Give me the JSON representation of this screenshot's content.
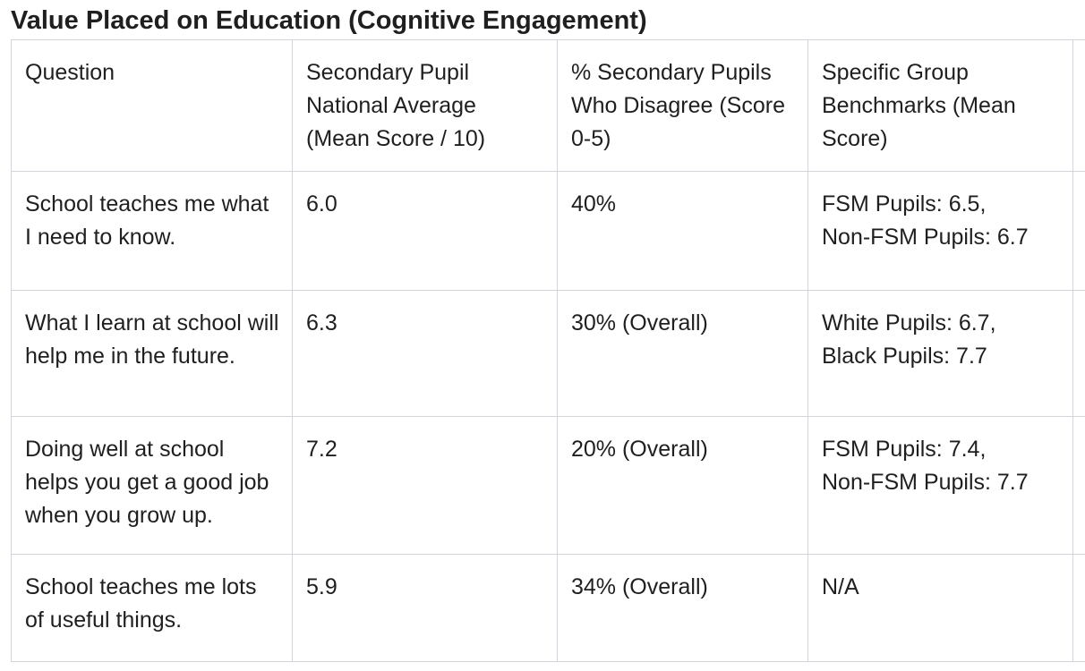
{
  "title": "Value Placed on Education (Cognitive Engagement)",
  "table": {
    "headers": [
      "Question",
      "Secondary Pupil National Average (Mean Score / 10)",
      "% Secondary Pupils Who Disagree (Score 0-5)",
      "Specific Group Benchmarks (Mean Score)",
      ""
    ],
    "rows": [
      {
        "question": "School teaches me what I need to know.",
        "mean": "6.0",
        "disagree": "40%",
        "benchmarks_line1": "FSM Pupils: 6.5,",
        "benchmarks_line2": "Non-FSM Pupils: 6.7",
        "extra": ""
      },
      {
        "question": "What I learn at school will help me in the future.",
        "mean": "6.3",
        "disagree": "30% (Overall)",
        "benchmarks_line1": "White Pupils: 6.7,",
        "benchmarks_line2": "Black Pupils: 7.7",
        "extra": ""
      },
      {
        "question": "Doing well at school helps you get a good job when you grow up.",
        "mean": "7.2",
        "disagree": "20% (Overall)",
        "benchmarks_line1": "FSM Pupils: 7.4,",
        "benchmarks_line2": "Non-FSM Pupils: 7.7",
        "extra": ""
      },
      {
        "question": "School teaches me lots of useful things.",
        "mean": "5.9",
        "disagree": "34% (Overall)",
        "benchmarks_line1": "N/A",
        "benchmarks_line2": "",
        "extra": ""
      }
    ]
  }
}
